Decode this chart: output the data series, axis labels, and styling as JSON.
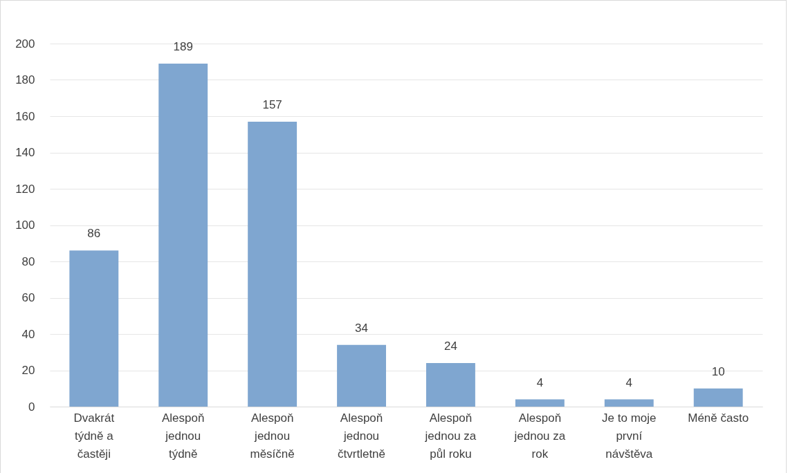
{
  "chart_data": {
    "type": "bar",
    "categories": [
      "Dvakrát týdně a častěji",
      "Alespoň jednou týdně",
      "Alespoň jednou měsíčně",
      "Alespoň jednou čtvrtletně",
      "Alespoň jednou za půl roku",
      "Alespoň jednou za rok",
      "Je to moje první návštěva",
      "Méně často"
    ],
    "values": [
      86,
      189,
      157,
      34,
      24,
      4,
      4,
      10
    ],
    "color": "#7fa6d0",
    "ylim": [
      0,
      200
    ],
    "yticks": [
      0,
      20,
      40,
      60,
      80,
      100,
      120,
      140,
      160,
      180,
      200
    ],
    "grid": "y",
    "data_labels": true
  }
}
